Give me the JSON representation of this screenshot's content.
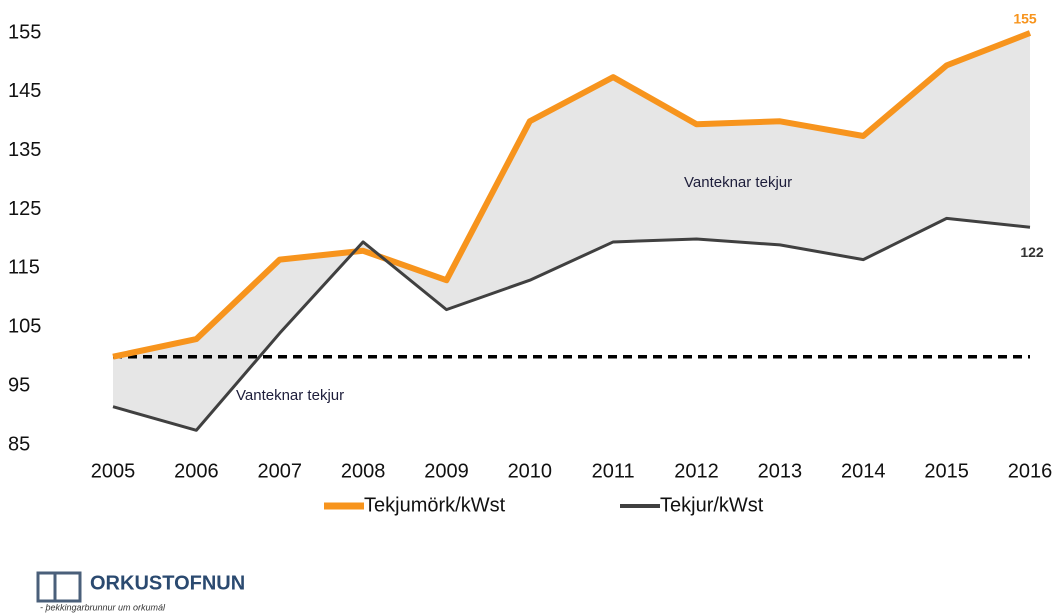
{
  "chart_data": {
    "type": "line",
    "x": [
      "2005",
      "2006",
      "2007",
      "2008",
      "2009",
      "2010",
      "2011",
      "2012",
      "2013",
      "2014",
      "2015",
      "2016"
    ],
    "series": [
      {
        "name": "Tekjumörk/kWst",
        "color": "#f7941d",
        "values": [
          100,
          103,
          116.5,
          118,
          113,
          140,
          147.5,
          139.5,
          140,
          137.5,
          149.5,
          155
        ]
      },
      {
        "name": "Tekjur/kWst",
        "color": "#404040",
        "values": [
          91.5,
          87.5,
          104,
          119.5,
          108,
          113,
          119.5,
          120,
          119,
          116.5,
          123.5,
          122
        ]
      }
    ],
    "reference_line": 100,
    "ylim": [
      85,
      155
    ],
    "yticks": [
      85,
      95,
      105,
      115,
      125,
      135,
      145,
      155
    ],
    "fill_between": true,
    "fill_color": "#e6e6e6",
    "annotations": [
      "Vanteknar tekjur",
      "Vanteknar tekjur"
    ]
  },
  "logo": {
    "name": "ORKUSTOFNUN",
    "tagline": "- þekkingarbrunnur um orkumál"
  }
}
